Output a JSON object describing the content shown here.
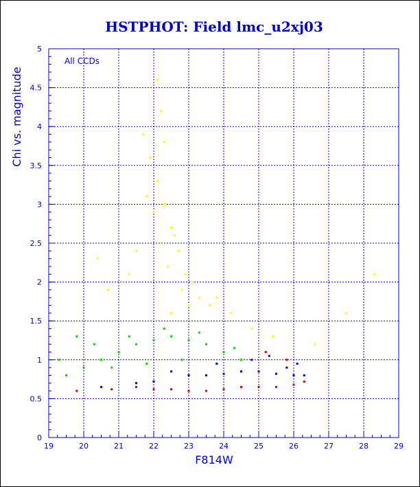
{
  "chart_data": {
    "type": "scatter",
    "title": "HSTPHOT: Field lmc_u2xj03",
    "xlabel": "F814W",
    "ylabel": "Chi vs. magnitude",
    "annotation": "All CCDs",
    "xlim": [
      19,
      29
    ],
    "ylim": [
      0,
      5
    ],
    "xticks": [
      "19",
      "20",
      "21",
      "22",
      "23",
      "24",
      "25",
      "26",
      "27",
      "28",
      "29"
    ],
    "yticks": [
      "0",
      "0.5",
      "1",
      "1.5",
      "2",
      "2.5",
      "3",
      "3.5",
      "4",
      "4.5",
      "5"
    ],
    "grid": true,
    "series": [
      {
        "color": "#ffff00",
        "x": [
          21.7,
          21.9,
          22.1,
          22.3,
          22.5,
          22.7,
          22.9,
          22.2,
          22.4,
          22.0,
          21.8,
          23.1,
          23.3,
          23.6,
          22.6,
          22.8,
          21.5,
          21.3,
          22.2,
          22.5,
          23.0,
          23.8,
          24.2,
          20.4,
          20.7,
          21.1,
          24.8,
          25.4,
          26.6,
          27.5,
          28.3,
          22.1,
          22.3
        ],
        "y": [
          3.9,
          3.6,
          3.3,
          3.0,
          2.7,
          2.4,
          2.1,
          2.5,
          2.2,
          2.9,
          3.1,
          2.0,
          1.8,
          1.7,
          2.6,
          1.9,
          2.4,
          2.1,
          4.2,
          1.6,
          1.7,
          1.8,
          1.6,
          2.3,
          1.9,
          2.0,
          1.4,
          1.3,
          1.2,
          1.6,
          2.1,
          4.6,
          3.8
        ]
      },
      {
        "color": "#00dd00",
        "x": [
          19.5,
          20.0,
          20.5,
          21.0,
          21.5,
          22.0,
          22.5,
          23.0,
          23.5,
          24.0,
          24.5,
          19.3,
          20.3,
          21.3,
          22.3,
          23.3,
          24.3,
          21.8,
          22.8,
          23.8,
          20.8,
          19.8
        ],
        "y": [
          0.8,
          0.9,
          1.0,
          1.1,
          1.2,
          1.25,
          1.3,
          1.25,
          1.2,
          1.1,
          1.0,
          1.0,
          1.2,
          1.3,
          1.4,
          1.35,
          1.15,
          0.95,
          1.0,
          0.95,
          0.9,
          1.3
        ]
      },
      {
        "color": "#0000ee",
        "x": [
          22.5,
          23.0,
          23.5,
          24.0,
          24.5,
          25.0,
          25.5,
          26.0,
          26.3,
          23.8,
          24.8,
          25.8,
          21.5,
          22.0,
          20.5,
          25.3,
          26.1
        ],
        "y": [
          0.85,
          0.8,
          0.8,
          0.82,
          0.85,
          0.85,
          0.82,
          0.8,
          0.8,
          0.95,
          1.0,
          0.9,
          0.7,
          0.72,
          0.65,
          1.05,
          0.95
        ]
      },
      {
        "color": "#dd0000",
        "x": [
          21.5,
          22.0,
          22.5,
          23.0,
          23.5,
          24.0,
          24.5,
          25.0,
          25.5,
          26.0,
          26.3,
          20.8,
          19.8,
          25.2,
          25.8
        ],
        "y": [
          0.65,
          0.62,
          0.62,
          0.6,
          0.6,
          0.62,
          0.65,
          0.65,
          0.65,
          0.68,
          0.72,
          0.62,
          0.6,
          1.1,
          1.0
        ]
      }
    ]
  }
}
